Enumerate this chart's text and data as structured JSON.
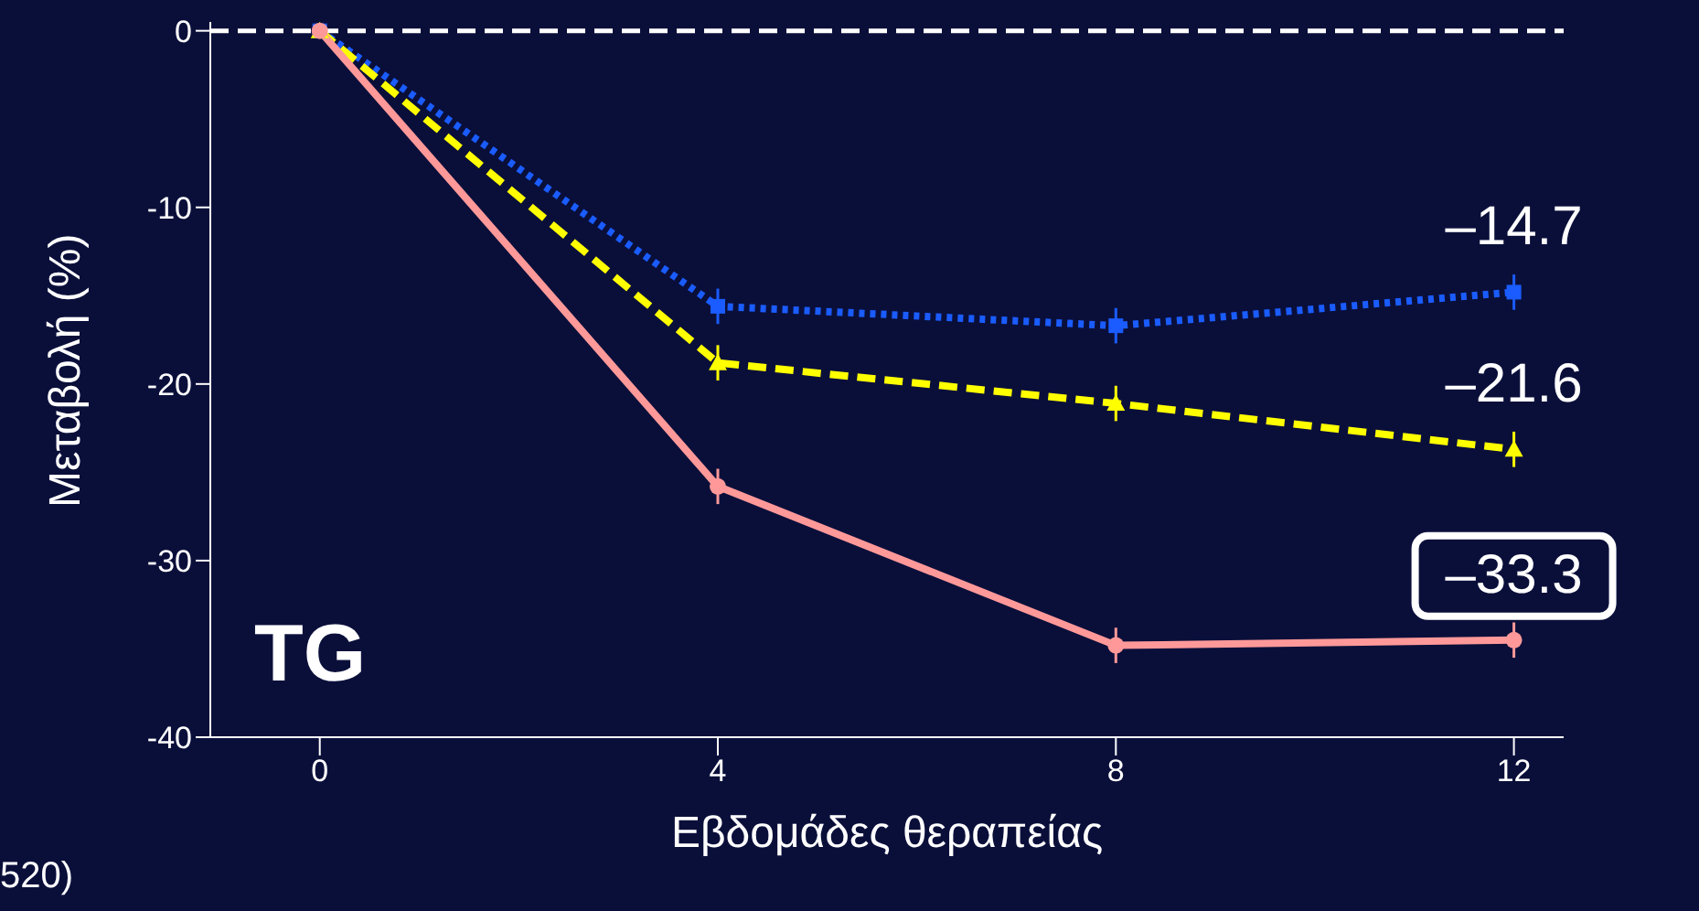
{
  "chart_data": {
    "type": "line",
    "xlabel": "Εβδομάδες θεραπείας",
    "ylabel": "Μεταβολή (%)",
    "x": [
      0,
      4,
      8,
      12
    ],
    "series": [
      {
        "color": "#1a5cff",
        "values": [
          0,
          -15.6,
          -16.7,
          -14.8
        ],
        "errors": [
          null,
          1,
          1,
          1
        ],
        "marker": "square",
        "line_style": "dotted"
      },
      {
        "color": "#ffff00",
        "values": [
          0,
          -18.8,
          -21.1,
          -23.7
        ],
        "errors": [
          null,
          1,
          1,
          1
        ],
        "marker": "triangle",
        "line_style": "dashed"
      },
      {
        "color": "#ff9999",
        "values": [
          0,
          -25.8,
          -34.8,
          -34.5
        ],
        "errors": [
          null,
          1,
          1,
          1
        ],
        "marker": "circle",
        "line_style": "solid"
      }
    ],
    "xlim": [
      -1.1,
      12.5
    ],
    "xticks": [
      0,
      4,
      8,
      12
    ],
    "ylim": [
      -40,
      0.5
    ],
    "yticks": [
      0,
      -10,
      -20,
      -30,
      -40
    ],
    "ref_lines": [
      {
        "axis": "y",
        "value": 0,
        "color": "#ffffff",
        "line_style": "dashed"
      }
    ],
    "annotations": [
      "–14.7",
      "–21.6",
      "–33.3",
      "TG",
      "520)"
    ],
    "grid": false,
    "legend": false
  }
}
